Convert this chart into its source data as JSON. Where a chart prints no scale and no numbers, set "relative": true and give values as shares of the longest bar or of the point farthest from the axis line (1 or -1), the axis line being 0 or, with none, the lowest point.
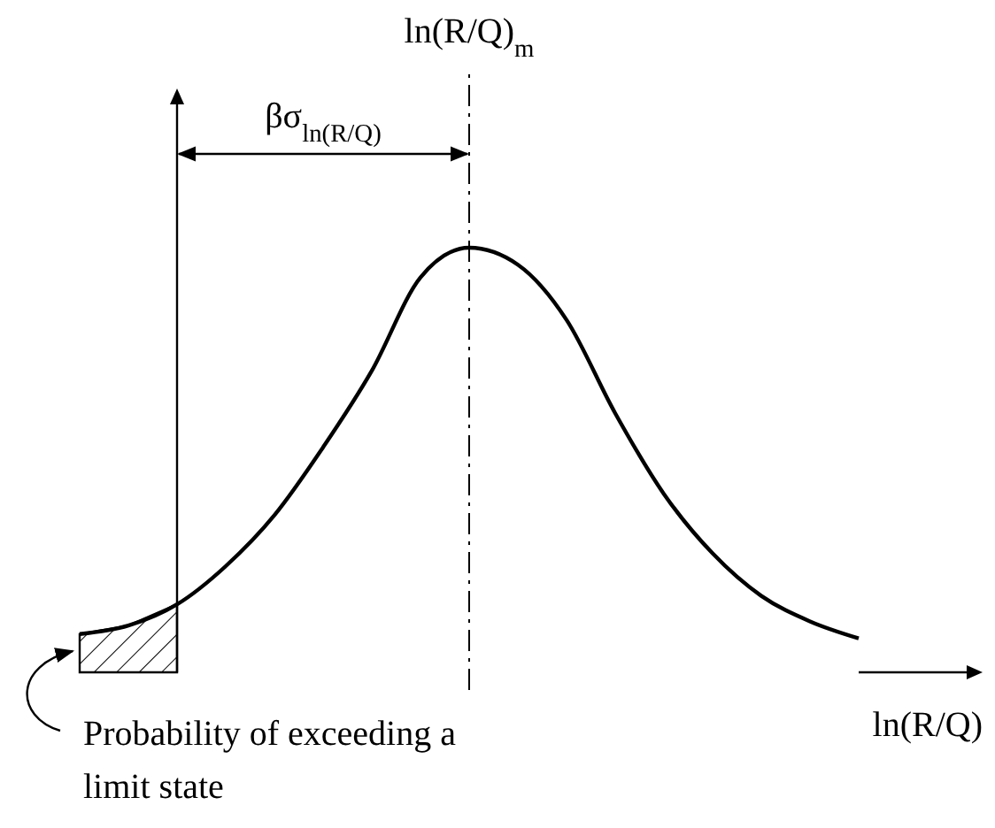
{
  "chart_data": {
    "type": "line",
    "relative": true,
    "xlabel": "ln(R/Q)",
    "color": "#000000",
    "categories": [
      null,
      null,
      null,
      null,
      null,
      null,
      null,
      null,
      null,
      null,
      null,
      null,
      null,
      null,
      null,
      null,
      null
    ],
    "values": [
      0.09,
      0.11,
      0.16,
      0.25,
      0.37,
      0.53,
      0.71,
      0.93,
      1,
      0.96,
      0.83,
      0.61,
      0.42,
      0.28,
      0.18,
      0.12,
      0.08
    ],
    "annotations": [
      "βσ$_{ln(R/Q)}$",
      "ln(R/Q)$_{m}$",
      "Probability of exceeding a limit state"
    ]
  }
}
